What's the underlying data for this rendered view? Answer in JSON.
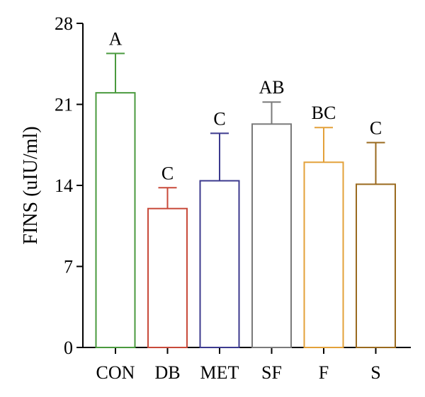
{
  "chart_data": {
    "type": "bar",
    "ylabel": "FINS (uIU/ml)",
    "xlabel": "",
    "ylim": [
      0,
      28
    ],
    "yticks": [
      0,
      7,
      14,
      21,
      28
    ],
    "grid": false,
    "categories": [
      "CON",
      "DB",
      "MET",
      "SF",
      "F",
      "S"
    ],
    "values": [
      22.0,
      12.0,
      14.4,
      19.3,
      16.0,
      14.1
    ],
    "errors": [
      3.4,
      1.8,
      4.1,
      1.9,
      3.0,
      3.6
    ],
    "significance": [
      "A",
      "C",
      "C",
      "AB",
      "BC",
      "C"
    ],
    "colors": [
      "#4a9a3e",
      "#c84a3a",
      "#3c3a8e",
      "#7a7a7a",
      "#e3a13a",
      "#9a6a1e"
    ]
  }
}
